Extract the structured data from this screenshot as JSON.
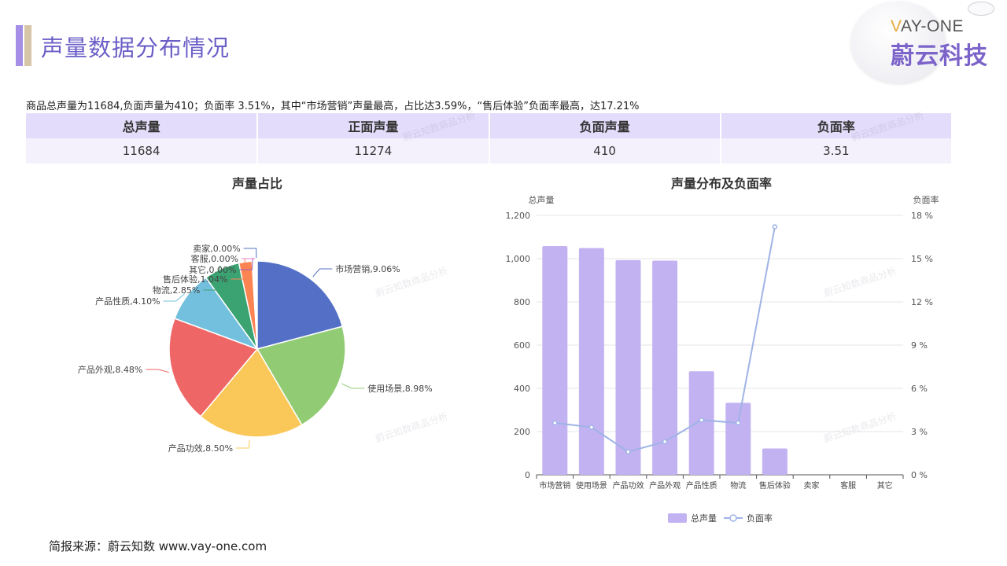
{
  "header": {
    "title": "声量数据分布情况",
    "logo_en_first": "V",
    "logo_en_rest": "AY-ONE",
    "logo_cn": "蔚云科技"
  },
  "summary": "商品总声量为11684,负面声量为410；负面率 3.51%，其中“市场营销”声量最高，占比达3.59%，“售后体验”负面率最高，达17.21%",
  "stats_table": {
    "headers": [
      "总声量",
      "正面声量",
      "负面声量",
      "负面率"
    ],
    "values": [
      "11684",
      "11274",
      "410",
      "3.51"
    ]
  },
  "watermark": "蔚云知数商品分析",
  "source": "简报来源：蔚云知数 www.vay-one.com",
  "colors": {
    "accent": "#6b5fc7",
    "bar": "#c3b2f2",
    "line": "#9fb3e6"
  },
  "chart_data": [
    {
      "type": "pie",
      "title": "声量占比",
      "slices": [
        {
          "label": "市场营销,9.06%",
          "share": 9.06,
          "color": "#5470c6"
        },
        {
          "label": "使用场景,8.98%",
          "share": 8.98,
          "color": "#91cc75"
        },
        {
          "label": "产品功效,8.50%",
          "share": 8.5,
          "color": "#fac858"
        },
        {
          "label": "产品外观,8.48%",
          "share": 8.48,
          "color": "#ee6666"
        },
        {
          "label": "产品性质,4.10%",
          "share": 4.1,
          "color": "#73c0de"
        },
        {
          "label": "物流,2.85%",
          "share": 2.85,
          "color": "#3ba272"
        },
        {
          "label": "售后体验,1.04%",
          "share": 1.04,
          "color": "#fc8452"
        },
        {
          "label": "其它,0.00%",
          "share": 0.0,
          "color": "#9a60b4"
        },
        {
          "label": "客服,0.00%",
          "share": 0.0,
          "color": "#ea7ccc"
        },
        {
          "label": "卖家,0.00%",
          "share": 0.0,
          "color": "#5470c6"
        }
      ]
    },
    {
      "type": "bar",
      "title": "声量分布及负面率",
      "categories": [
        "市场营销",
        "使用场景",
        "产品功效",
        "产品外观",
        "产品性质",
        "物流",
        "售后体验",
        "卖家",
        "客服",
        "其它"
      ],
      "y_left": {
        "label": "总声量",
        "range": [
          0,
          1200
        ],
        "ticks": [
          "0",
          "200",
          "400",
          "600",
          "800",
          "1,000",
          "1,200"
        ]
      },
      "y_right": {
        "label": "负面率",
        "range": [
          0,
          18
        ],
        "ticks": [
          "0 %",
          "3 %",
          "6 %",
          "9 %",
          "12 %",
          "15 %",
          "18 %"
        ]
      },
      "series": [
        {
          "name": "总声量",
          "type": "bar",
          "values": [
            1058,
            1049,
            993,
            991,
            479,
            333,
            122,
            0,
            0,
            0
          ]
        },
        {
          "name": "负面率",
          "type": "line",
          "values": [
            3.6,
            3.3,
            1.6,
            2.3,
            3.8,
            3.6,
            17.21,
            null,
            null,
            null
          ]
        }
      ],
      "legend_position": "bottom-center",
      "grid": true
    }
  ]
}
